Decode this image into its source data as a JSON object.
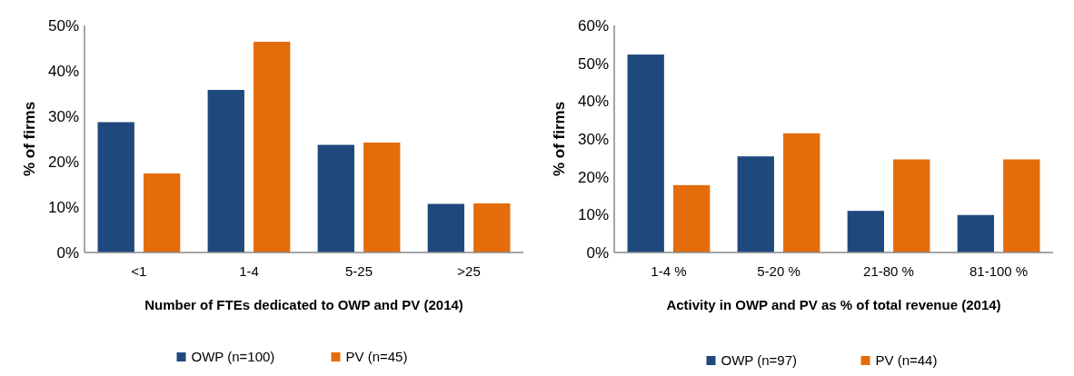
{
  "chart_data": [
    {
      "type": "bar",
      "xlabel": "Number of FTEs dedicated to OWP and PV (2014)",
      "ylabel": "% of firms",
      "categories": [
        "<1",
        "1-4",
        "5-25",
        ">25"
      ],
      "series": [
        {
          "name": "OWP (n=100)",
          "color": "#1f497d",
          "values": [
            28.7,
            35.8,
            23.7,
            10.7
          ]
        },
        {
          "name": "PV (n=45)",
          "color": "#e46c0a",
          "values": [
            17.4,
            46.4,
            24.2,
            10.8
          ]
        }
      ],
      "ylim": [
        0,
        50
      ],
      "yticks": [
        {
          "value": 0,
          "label": "0%"
        },
        {
          "value": 10,
          "label": "10%"
        },
        {
          "value": 20,
          "label": "20%"
        },
        {
          "value": 30,
          "label": "30%"
        },
        {
          "value": 40,
          "label": "40%"
        },
        {
          "value": 50,
          "label": "50%"
        }
      ],
      "grid": false,
      "legend": "bottom"
    },
    {
      "type": "bar",
      "xlabel": "Activity in OWP and PV as % of total revenue (2014)",
      "ylabel": "% of firms",
      "categories": [
        "1-4 %",
        "5-20 %",
        "21-80 %",
        "81-100 %"
      ],
      "series": [
        {
          "name": "OWP (n=97)",
          "color": "#1f497d",
          "values": [
            52.3,
            25.4,
            11.0,
            9.9
          ]
        },
        {
          "name": "PV (n=44)",
          "color": "#e46c0a",
          "values": [
            17.8,
            31.5,
            24.6,
            24.6
          ]
        }
      ],
      "ylim": [
        0,
        60
      ],
      "yticks": [
        {
          "value": 0,
          "label": "0%"
        },
        {
          "value": 10,
          "label": "10%"
        },
        {
          "value": 20,
          "label": "20%"
        },
        {
          "value": 30,
          "label": "30%"
        },
        {
          "value": 40,
          "label": "40%"
        },
        {
          "value": 50,
          "label": "50%"
        },
        {
          "value": 60,
          "label": "60%"
        }
      ],
      "grid": false,
      "legend": "bottom"
    }
  ]
}
